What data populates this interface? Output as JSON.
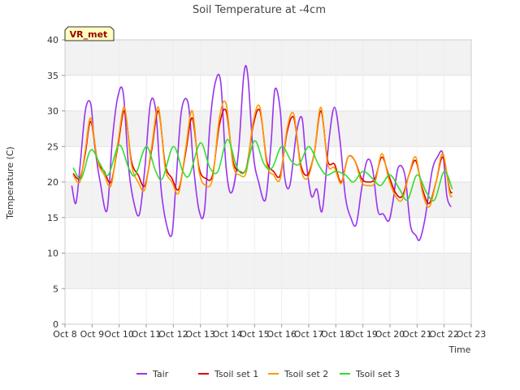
{
  "chart_data": {
    "type": "line",
    "title": "Soil Temperature at -4cm",
    "xlabel": "Time",
    "ylabel": "Temperature (C)",
    "badge": "VR_met",
    "ylim": [
      0,
      40
    ],
    "yticks": [
      0,
      5,
      10,
      15,
      20,
      25,
      30,
      35,
      40
    ],
    "xlim": [
      8,
      23
    ],
    "xticks": [
      {
        "v": 8,
        "label": "Oct 8"
      },
      {
        "v": 9,
        "label": "Oct 9"
      },
      {
        "v": 10,
        "label": "Oct 10"
      },
      {
        "v": 11,
        "label": "Oct 11"
      },
      {
        "v": 12,
        "label": "Oct 12"
      },
      {
        "v": 13,
        "label": "Oct 13"
      },
      {
        "v": 14,
        "label": "Oct 14"
      },
      {
        "v": 15,
        "label": "Oct 15"
      },
      {
        "v": 16,
        "label": "Oct 16"
      },
      {
        "v": 17,
        "label": "Oct 17"
      },
      {
        "v": 18,
        "label": "Oct 18"
      },
      {
        "v": 19,
        "label": "Oct 19"
      },
      {
        "v": 20,
        "label": "Oct 20"
      },
      {
        "v": 21,
        "label": "Oct 21"
      },
      {
        "v": 22,
        "label": "Oct 22"
      },
      {
        "v": 23,
        "label": "Oct 23"
      }
    ],
    "grid": true,
    "legend_position": "bottom",
    "series": [
      {
        "name": "Tair",
        "color": "#9933ee",
        "x": [
          8.25,
          8.4,
          8.55,
          8.75,
          8.95,
          9.1,
          9.3,
          9.55,
          9.75,
          9.95,
          10.15,
          10.35,
          10.55,
          10.75,
          10.95,
          11.15,
          11.35,
          11.55,
          11.75,
          11.95,
          12.1,
          12.3,
          12.55,
          12.75,
          12.95,
          13.15,
          13.35,
          13.55,
          13.75,
          13.95,
          14.15,
          14.4,
          14.6,
          14.75,
          14.95,
          15.15,
          15.4,
          15.6,
          15.75,
          15.95,
          16.1,
          16.3,
          16.55,
          16.75,
          16.9,
          17.1,
          17.3,
          17.5,
          17.75,
          17.95,
          18.15,
          18.35,
          18.55,
          18.75,
          18.95,
          19.15,
          19.35,
          19.55,
          19.75,
          19.95,
          20.1,
          20.3,
          20.55,
          20.75,
          20.95,
          21.1,
          21.3,
          21.55,
          21.75,
          21.95,
          22.1,
          22.25
        ],
        "y": [
          19.5,
          17,
          22,
          30,
          31,
          25,
          20,
          16,
          26,
          32,
          32.5,
          22,
          17,
          15.5,
          22,
          31,
          30,
          19,
          14,
          12.7,
          20,
          30,
          31,
          22,
          16,
          16,
          28,
          34,
          34,
          22,
          18.5,
          24,
          35,
          35,
          24,
          20,
          17.5,
          25,
          33,
          30,
          21,
          19.5,
          27,
          29,
          23,
          18,
          19,
          16,
          26,
          30.5,
          26,
          18,
          15,
          14,
          19,
          23,
          22,
          16,
          15.5,
          14.5,
          17,
          22,
          21,
          14,
          12.5,
          11.9,
          15,
          21.5,
          23.5,
          24,
          18,
          16.5
        ]
      },
      {
        "name": "Tsoil set 1",
        "color": "#dd0000",
        "x": [
          8.3,
          8.55,
          8.75,
          8.95,
          9.2,
          9.45,
          9.7,
          9.95,
          10.2,
          10.45,
          10.7,
          10.95,
          11.2,
          11.45,
          11.7,
          11.95,
          12.2,
          12.45,
          12.7,
          12.95,
          13.2,
          13.45,
          13.7,
          13.95,
          14.2,
          14.45,
          14.7,
          14.95,
          15.2,
          15.45,
          15.7,
          15.95,
          16.2,
          16.45,
          16.7,
          16.95,
          17.2,
          17.45,
          17.7,
          17.95,
          18.2,
          18.45,
          18.7,
          18.95,
          19.2,
          19.45,
          19.7,
          19.95,
          20.2,
          20.45,
          20.7,
          20.95,
          21.2,
          21.45,
          21.7,
          21.95,
          22.2,
          22.3
        ],
        "y": [
          21.2,
          20.5,
          24,
          28.5,
          23,
          21.5,
          20,
          25,
          30,
          23,
          21,
          19.5,
          24.5,
          30,
          22.5,
          20.5,
          19,
          24,
          29,
          22,
          20.5,
          21,
          28,
          30,
          23,
          21.5,
          22,
          28,
          30,
          23,
          21.5,
          21,
          27,
          29,
          22.5,
          21,
          24,
          30,
          23,
          22.5,
          20,
          23.5,
          23,
          20.5,
          20,
          20.5,
          23.5,
          21,
          18.5,
          18,
          21,
          23,
          19,
          17,
          20,
          23.5,
          19,
          18.5
        ]
      },
      {
        "name": "Tsoil set 2",
        "color": "#ff9900",
        "x": [
          8.3,
          8.55,
          8.75,
          8.95,
          9.2,
          9.45,
          9.7,
          9.95,
          10.2,
          10.45,
          10.7,
          10.95,
          11.2,
          11.45,
          11.7,
          11.95,
          12.2,
          12.45,
          12.7,
          12.95,
          13.2,
          13.45,
          13.7,
          13.95,
          14.2,
          14.45,
          14.7,
          14.95,
          15.2,
          15.45,
          15.7,
          15.95,
          16.2,
          16.45,
          16.7,
          16.95,
          17.2,
          17.45,
          17.7,
          17.95,
          18.2,
          18.45,
          18.7,
          18.95,
          19.2,
          19.45,
          19.7,
          19.95,
          20.2,
          20.45,
          20.7,
          20.95,
          21.2,
          21.45,
          21.7,
          21.95,
          22.2,
          22.3
        ],
        "y": [
          21,
          20,
          24.5,
          29,
          23,
          21,
          19.5,
          25.5,
          30.5,
          22.5,
          20,
          19,
          25,
          30.5,
          22,
          20,
          18.5,
          24.5,
          30,
          21.5,
          19.5,
          20.5,
          29,
          31,
          22.5,
          21,
          21.5,
          28.5,
          30.5,
          22.5,
          21,
          20.5,
          27.5,
          29.5,
          22,
          20.5,
          24,
          30.5,
          22.5,
          22,
          19.8,
          23.5,
          23,
          20,
          19.5,
          20,
          24,
          20.5,
          18,
          17.5,
          21,
          23.5,
          18.5,
          16.5,
          20,
          24,
          18.5,
          18
        ]
      },
      {
        "name": "Tsoil set 3",
        "color": "#33dd33",
        "x": [
          8.3,
          8.6,
          8.95,
          9.3,
          9.6,
          10,
          10.35,
          10.6,
          11,
          11.35,
          11.6,
          12,
          12.35,
          12.6,
          13,
          13.35,
          13.65,
          14,
          14.35,
          14.65,
          15,
          15.35,
          15.65,
          16,
          16.35,
          16.65,
          17,
          17.35,
          17.65,
          18,
          18.35,
          18.65,
          19,
          19.35,
          19.65,
          20,
          20.35,
          20.65,
          21,
          21.35,
          21.65,
          22,
          22.3
        ],
        "y": [
          22,
          20.5,
          24.5,
          22.5,
          21,
          25.2,
          22,
          21,
          25,
          21.5,
          20.5,
          25,
          21.5,
          21,
          25.5,
          22,
          21.5,
          26,
          22,
          21.5,
          25.8,
          22.5,
          22,
          25,
          23,
          22.5,
          25,
          22.5,
          21,
          21.5,
          21,
          20,
          21.5,
          20.5,
          19.5,
          21,
          19,
          17.5,
          21,
          18.5,
          17.5,
          21.5,
          19
        ]
      }
    ]
  }
}
